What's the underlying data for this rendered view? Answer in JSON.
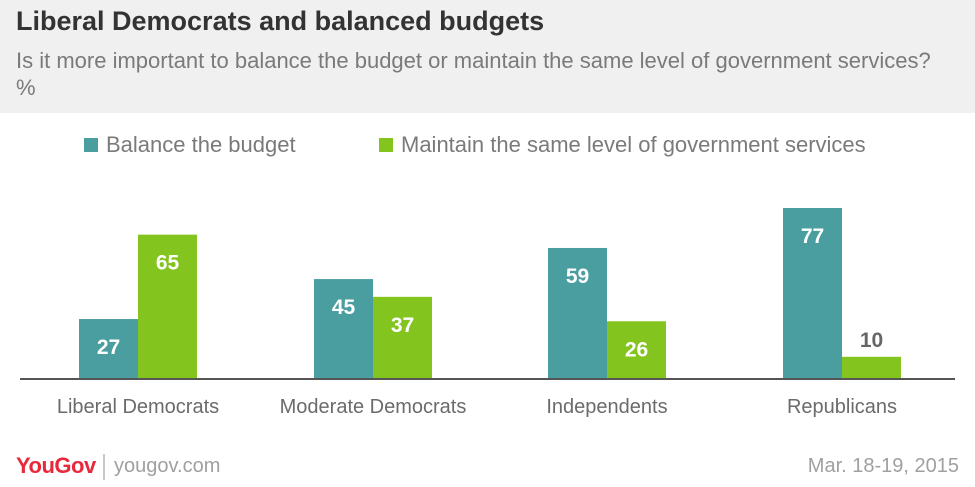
{
  "header": {
    "title": "Liberal Democrats and balanced budgets",
    "subtitle": "Is it more important to balance the budget or maintain the same level of government services? %"
  },
  "footer": {
    "logo": "YouGov",
    "site": "yougov.com",
    "date": "Mar. 18-19, 2015"
  },
  "colors": {
    "balance": "#4a9ea0",
    "maintain": "#84c41e",
    "axis": "#555555",
    "category_text": "#6b6b6b"
  },
  "chart_data": {
    "type": "bar",
    "categories": [
      "Liberal Democrats",
      "Moderate Democrats",
      "Independents",
      "Republicans"
    ],
    "series": [
      {
        "name": "Balance the budget",
        "values": [
          27,
          45,
          59,
          77
        ]
      },
      {
        "name": "Maintain the same level of government services",
        "values": [
          65,
          37,
          26,
          10
        ]
      }
    ],
    "ylim": [
      0,
      77
    ],
    "legend": "top",
    "grid": false,
    "data_labels": true
  }
}
